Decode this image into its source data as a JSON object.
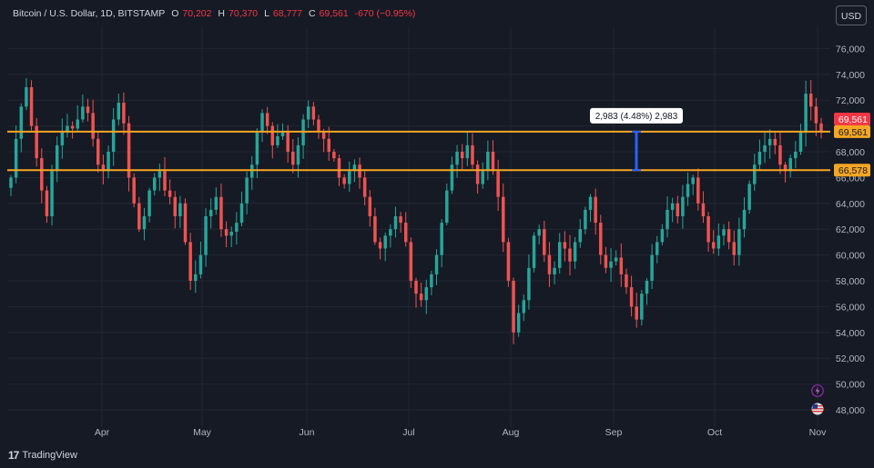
{
  "header": {
    "symbol": "Bitcoin / U.S. Dollar, 1D, BITSTAMP",
    "open_label": "O",
    "open": "70,202",
    "high_label": "H",
    "high": "70,370",
    "low_label": "L",
    "low": "68,777",
    "close_label": "C",
    "close": "69,561",
    "change": "-670 (−0.95%)"
  },
  "currency_button": "USD",
  "footer": {
    "logo_text": "TradingView"
  },
  "colors": {
    "background": "#161a25",
    "up": "#26a69a",
    "down": "#ef5350",
    "level_line": "#f5a623",
    "measure": "#2962ff",
    "price_label_red": "#f23645"
  },
  "icons": [
    "lightning-icon",
    "us-flag-icon"
  ],
  "chart_data": {
    "type": "candlestick",
    "title": "Bitcoin / U.S. Dollar, 1D, BITSTAMP",
    "x_tick_labels": [
      "Apr",
      "May",
      "Jun",
      "Jul",
      "Aug",
      "Sep",
      "Oct",
      "Nov"
    ],
    "y_tick_labels": [
      "48,000",
      "50,000",
      "52,000",
      "54,000",
      "56,000",
      "58,000",
      "60,000",
      "62,000",
      "64,000",
      "66,000",
      "68,000",
      "70,000",
      "72,000",
      "74,000",
      "76,000"
    ],
    "ylim": [
      47000,
      77500
    ],
    "horizontal_levels": [
      {
        "value": 69561,
        "label": "69,561"
      },
      {
        "value": 66578,
        "label": "66,578"
      }
    ],
    "current_price_label": "69,561",
    "measurement": {
      "from": 66578,
      "to": 69561,
      "label": "2,983 (4.48%) 2,983"
    },
    "close_series_approx": [
      66000,
      69000,
      71500,
      73000,
      70000,
      67500,
      65000,
      63000,
      66500,
      68500,
      69500,
      70000,
      69800,
      70500,
      71500,
      71000,
      69000,
      67000,
      66500,
      68000,
      70500,
      71800,
      70200,
      66000,
      64000,
      62000,
      63000,
      65000,
      66000,
      66500,
      65000,
      64500,
      63000,
      64000,
      61000,
      58000,
      58500,
      60000,
      63000,
      63500,
      64500,
      62000,
      61500,
      61800,
      62500,
      64000,
      66000,
      67000,
      69500,
      71000,
      70000,
      68500,
      69200,
      69500,
      68000,
      67000,
      68500,
      70500,
      71500,
      70500,
      69500,
      69000,
      68000,
      67500,
      66000,
      65500,
      66500,
      67000,
      66000,
      64500,
      63000,
      61000,
      60500,
      61500,
      62000,
      63000,
      62500,
      61000,
      58000,
      57000,
      56500,
      57500,
      58500,
      60000,
      62500,
      65000,
      67000,
      68000,
      67500,
      68500,
      67000,
      65500,
      66500,
      68000,
      66500,
      64500,
      61000,
      58000,
      54000,
      55500,
      56500,
      59000,
      61500,
      62000,
      60000,
      58500,
      59000,
      61000,
      60500,
      59500,
      61000,
      62000,
      63500,
      64500,
      62500,
      60000,
      59000,
      59500,
      59800,
      58500,
      57500,
      56000,
      55000,
      57000,
      58000,
      60000,
      61000,
      62000,
      63500,
      64000,
      63000,
      64500,
      65500,
      66000,
      64000,
      63000,
      61000,
      60500,
      61500,
      62000,
      61000,
      60000,
      62000,
      63500,
      65500,
      67000,
      68000,
      68500,
      69000,
      68500,
      67000,
      66500,
      67500,
      68000,
      69500,
      72500,
      71500,
      70200,
      69561
    ]
  }
}
